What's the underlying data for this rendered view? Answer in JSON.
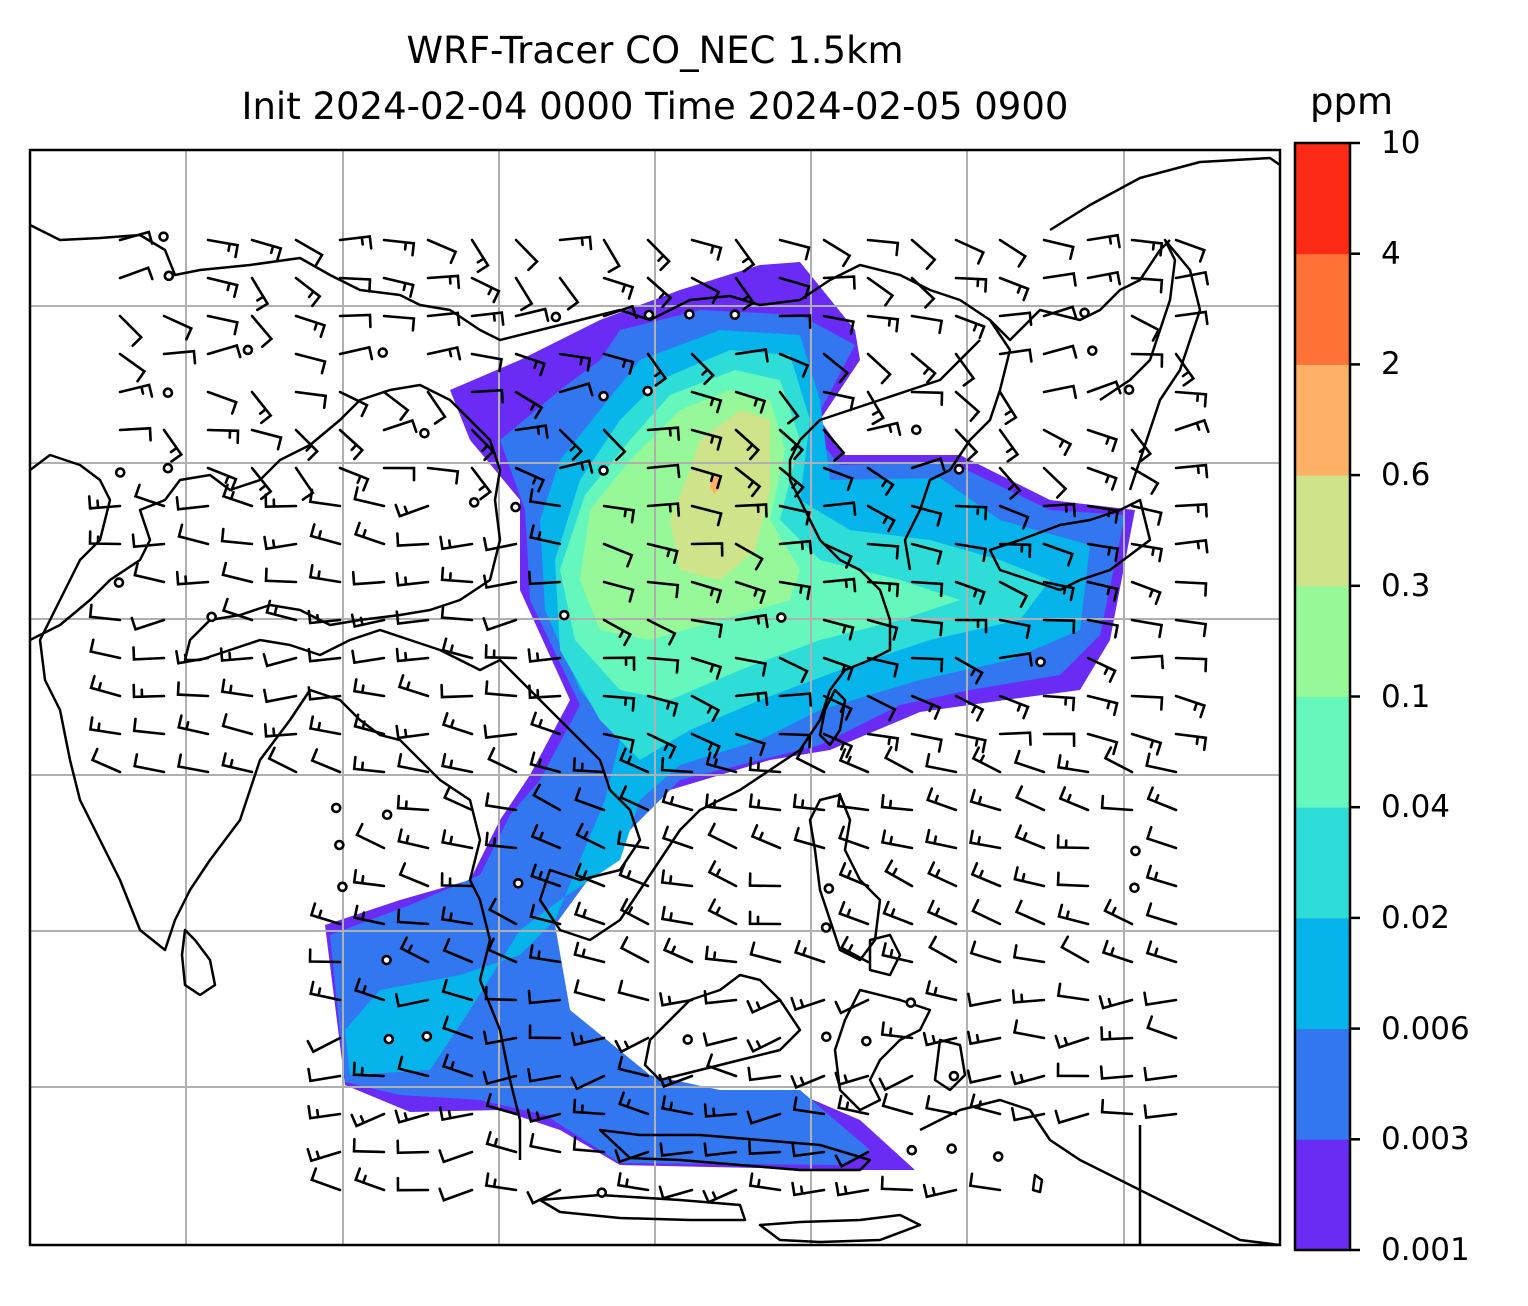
{
  "title_line1": "WRF-Tracer CO_NEC 1.5km",
  "title_line2": "Init 2024-02-04 0000 Time 2024-02-05 0900",
  "colorbar": {
    "unit": "ppm",
    "levels": [
      "0.001",
      "0.003",
      "0.006",
      "0.02",
      "0.04",
      "0.1",
      "0.3",
      "0.6",
      "2",
      "4",
      "10"
    ],
    "colors": [
      "#6a2bf5",
      "#3276f0",
      "#06b3ea",
      "#2edcd8",
      "#66f7bc",
      "#97f89a",
      "#cfe38a",
      "#feb067",
      "#fe7137",
      "#fd2a16"
    ]
  },
  "map": {
    "grid_color": "#b0b0b0",
    "coastline_color": "#000000",
    "wind_barb_color": "#000000"
  }
}
